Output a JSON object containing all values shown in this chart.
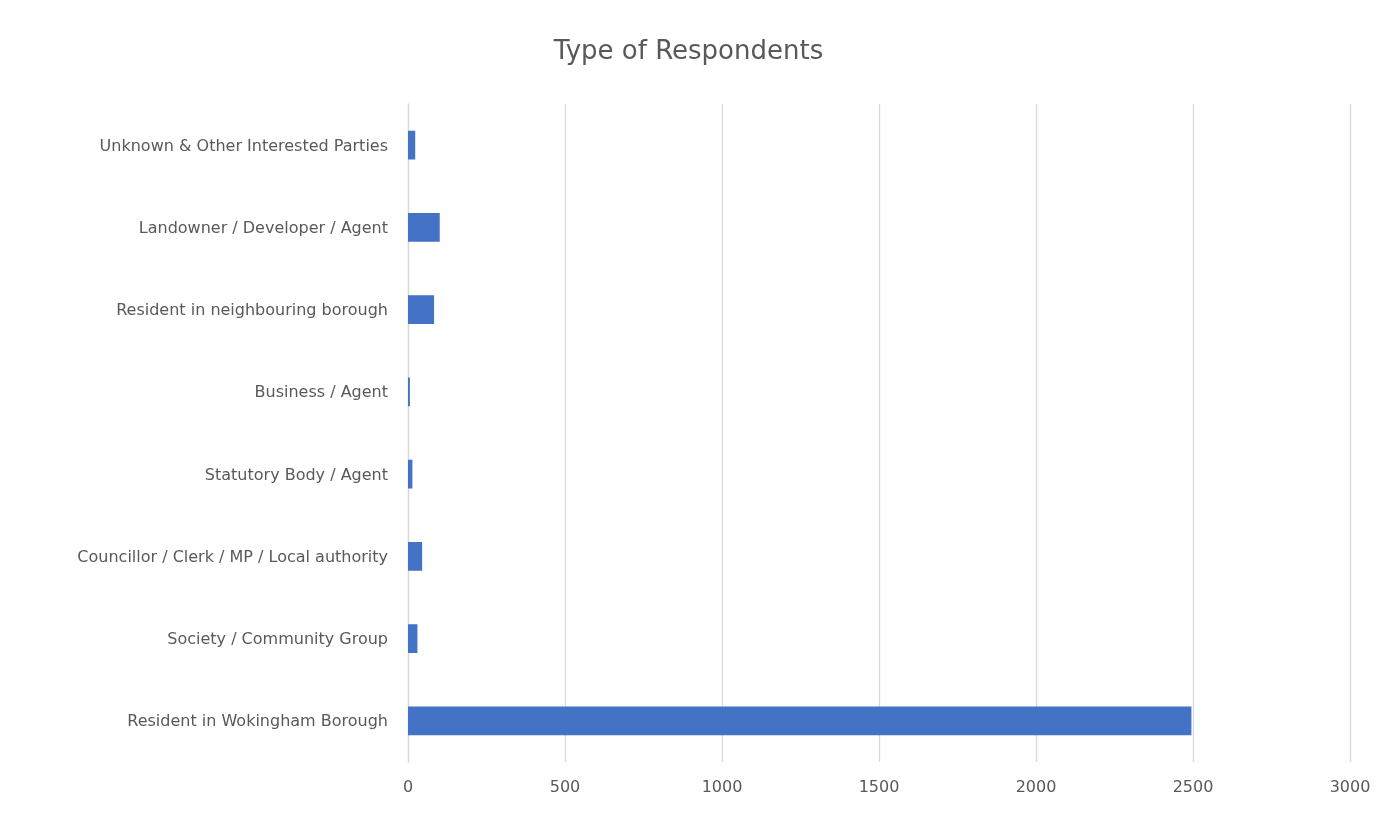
{
  "chart_data": {
    "type": "bar",
    "orientation": "horizontal",
    "title": "Type of Respondents",
    "categories": [
      "Unknown & Other Interested Parties",
      "Landowner / Developer / Agent",
      "Resident in neighbouring borough",
      "Business / Agent",
      "Statutory Body / Agent",
      "Councillor / Clerk / MP / Local authority",
      "Society / Community Group",
      "Resident in Wokingham Borough"
    ],
    "values": [
      23,
      101,
      83,
      6,
      14,
      45,
      30,
      2495
    ],
    "color": "#4472c4",
    "xlim": [
      0,
      3000
    ],
    "xticks": [
      0,
      500,
      1000,
      1500,
      2000,
      2500,
      3000
    ],
    "grid": "x"
  }
}
